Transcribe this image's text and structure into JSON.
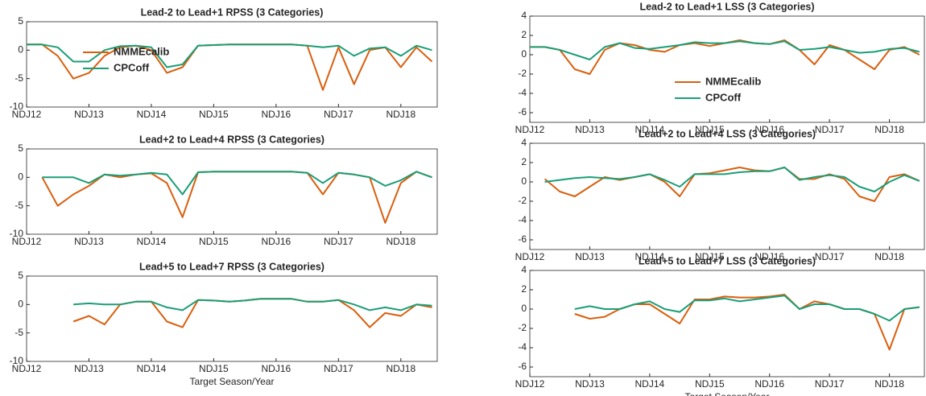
{
  "chart_data": [
    {
      "type": "line",
      "title": "Lead-2 to Lead+1 RPSS (3 Categories)",
      "x": [
        0,
        3,
        6,
        9,
        12,
        15,
        18,
        21,
        24,
        27,
        30,
        33,
        36,
        39,
        42,
        45,
        48,
        51,
        54,
        57,
        60,
        63,
        66,
        69,
        72,
        75,
        78
      ],
      "xlim": [
        0,
        79
      ],
      "xticks": [
        {
          "value": 0,
          "label": "NDJ12"
        },
        {
          "value": 12,
          "label": "NDJ13"
        },
        {
          "value": 24,
          "label": "NDJ14"
        },
        {
          "value": 36,
          "label": "NDJ15"
        },
        {
          "value": 48,
          "label": "NDJ16"
        },
        {
          "value": 60,
          "label": "NDJ17"
        },
        {
          "value": 72,
          "label": "NDJ18"
        }
      ],
      "ylim": [
        -10,
        5
      ],
      "yticks": [
        -10,
        -5,
        0,
        5
      ],
      "legend": "center left",
      "series": [
        {
          "name": "NMMEcalib",
          "color": "#d95f0e",
          "values": [
            1,
            1,
            -1,
            -5,
            -4,
            -1,
            0.5,
            0.8,
            0,
            -4,
            -3,
            0.8,
            0.9,
            1,
            1,
            1,
            1,
            1,
            0.8,
            -7,
            0.5,
            -6,
            0,
            0.5,
            -3,
            0.5,
            -2
          ]
        },
        {
          "name": "CPCoff",
          "color": "#1b9e77",
          "values": [
            1,
            1,
            0.5,
            -2,
            -2,
            0,
            0.7,
            0.8,
            0.5,
            -3,
            -2.5,
            0.8,
            0.9,
            1,
            1,
            1,
            1,
            1,
            0.8,
            0.5,
            0.8,
            -1,
            0.3,
            0.5,
            -1,
            0.8,
            0
          ]
        }
      ]
    },
    {
      "type": "line",
      "title": "Lead-2 to Lead+1 LSS (3 Categories)",
      "x": [
        0,
        3,
        6,
        9,
        12,
        15,
        18,
        21,
        24,
        27,
        30,
        33,
        36,
        39,
        42,
        45,
        48,
        51,
        54,
        57,
        60,
        63,
        66,
        69,
        72,
        75,
        78
      ],
      "xlim": [
        0,
        79
      ],
      "xticks": [
        {
          "value": 0,
          "label": "NDJ12"
        },
        {
          "value": 12,
          "label": "NDJ13"
        },
        {
          "value": 24,
          "label": "NDJ14"
        },
        {
          "value": 36,
          "label": "NDJ15"
        },
        {
          "value": 48,
          "label": "NDJ16"
        },
        {
          "value": 60,
          "label": "NDJ17"
        },
        {
          "value": 72,
          "label": "NDJ18"
        }
      ],
      "ylim": [
        -7,
        4
      ],
      "yticks": [
        -6,
        -4,
        -2,
        0,
        2,
        4
      ],
      "legend": "lower center",
      "series": [
        {
          "name": "NMMEcalib",
          "color": "#d95f0e",
          "values": [
            0.8,
            0.8,
            0.5,
            -1.5,
            -2,
            0.5,
            1.2,
            1,
            0.5,
            0.3,
            1,
            1.2,
            0.9,
            1.2,
            1.5,
            1.2,
            1.1,
            1.5,
            0.5,
            -1,
            1,
            0.5,
            -0.5,
            -1.5,
            0.5,
            0.8,
            0
          ]
        },
        {
          "name": "CPCoff",
          "color": "#1b9e77",
          "values": [
            0.8,
            0.8,
            0.5,
            0,
            -0.5,
            0.8,
            1.2,
            0.7,
            0.6,
            0.8,
            1,
            1.3,
            1.2,
            1.2,
            1.4,
            1.2,
            1.1,
            1.4,
            0.5,
            0.6,
            0.8,
            0.5,
            0.2,
            0.3,
            0.6,
            0.7,
            0.3
          ]
        }
      ]
    },
    {
      "type": "line",
      "title": "Lead+2 to Lead+4 RPSS (3 Categories)",
      "x": [
        0,
        3,
        6,
        9,
        12,
        15,
        18,
        21,
        24,
        27,
        30,
        33,
        36,
        39,
        42,
        45,
        48,
        51,
        54,
        57,
        60,
        63,
        66,
        69,
        72,
        75,
        78
      ],
      "xlim": [
        0,
        79
      ],
      "xticks": [
        {
          "value": 0,
          "label": "NDJ12"
        },
        {
          "value": 12,
          "label": "NDJ13"
        },
        {
          "value": 24,
          "label": "NDJ14"
        },
        {
          "value": 36,
          "label": "NDJ15"
        },
        {
          "value": 48,
          "label": "NDJ16"
        },
        {
          "value": 60,
          "label": "NDJ17"
        },
        {
          "value": 72,
          "label": "NDJ18"
        }
      ],
      "ylim": [
        -10,
        5
      ],
      "yticks": [
        -10,
        -5,
        0,
        5
      ],
      "series": [
        {
          "name": "NMMEcalib",
          "color": "#d95f0e",
          "values": [
            null,
            0,
            -5,
            -3,
            -1.5,
            0.5,
            0,
            0.5,
            0.7,
            -1,
            -7,
            0.9,
            1,
            1,
            1,
            1,
            1,
            1,
            0.8,
            -3,
            0.8,
            0.5,
            0,
            -8,
            -1,
            1,
            0
          ]
        },
        {
          "name": "CPCoff",
          "color": "#1b9e77",
          "values": [
            null,
            0,
            0,
            0,
            -1,
            0.5,
            0.3,
            0.5,
            0.8,
            0.5,
            -3,
            0.9,
            1,
            1,
            1,
            1,
            1,
            1,
            0.8,
            -1,
            0.8,
            0.5,
            0,
            -1.5,
            -0.5,
            1,
            0
          ]
        }
      ]
    },
    {
      "type": "line",
      "title": "Lead+2 to Lead+4 LSS (3 Categories)",
      "x": [
        0,
        3,
        6,
        9,
        12,
        15,
        18,
        21,
        24,
        27,
        30,
        33,
        36,
        39,
        42,
        45,
        48,
        51,
        54,
        57,
        60,
        63,
        66,
        69,
        72,
        75,
        78
      ],
      "xlim": [
        0,
        79
      ],
      "xticks": [
        {
          "value": 0,
          "label": "NDJ12"
        },
        {
          "value": 12,
          "label": "NDJ13"
        },
        {
          "value": 24,
          "label": "NDJ14"
        },
        {
          "value": 36,
          "label": "NDJ15"
        },
        {
          "value": 48,
          "label": "NDJ16"
        },
        {
          "value": 60,
          "label": "NDJ17"
        },
        {
          "value": 72,
          "label": "NDJ18"
        }
      ],
      "ylim": [
        -7,
        4
      ],
      "yticks": [
        -6,
        -4,
        -2,
        0,
        2,
        4
      ],
      "series": [
        {
          "name": "NMMEcalib",
          "color": "#d95f0e",
          "values": [
            null,
            0.3,
            -1,
            -1.5,
            -0.5,
            0.5,
            0.2,
            0.5,
            0.8,
            0,
            -1.5,
            0.8,
            0.9,
            1.2,
            1.5,
            1.2,
            1.1,
            1.5,
            0.3,
            0.3,
            0.8,
            0.3,
            -1.5,
            -2,
            0.5,
            0.8,
            0.1
          ]
        },
        {
          "name": "CPCoff",
          "color": "#1b9e77",
          "values": [
            null,
            0,
            0.2,
            0.4,
            0.5,
            0.4,
            0.3,
            0.5,
            0.8,
            0.2,
            -0.5,
            0.8,
            0.8,
            0.8,
            1.0,
            1.1,
            1.1,
            1.5,
            0.2,
            0.5,
            0.7,
            0.5,
            -0.5,
            -1,
            0,
            0.7,
            0.1
          ]
        }
      ]
    },
    {
      "type": "line",
      "title": "Lead+5 to Lead+7 RPSS (3 Categories)",
      "x_label": "Target Season/Year",
      "x": [
        0,
        3,
        6,
        9,
        12,
        15,
        18,
        21,
        24,
        27,
        30,
        33,
        36,
        39,
        42,
        45,
        48,
        51,
        54,
        57,
        60,
        63,
        66,
        69,
        72,
        75,
        78
      ],
      "xlim": [
        0,
        79
      ],
      "xticks": [
        {
          "value": 0,
          "label": "NDJ12"
        },
        {
          "value": 12,
          "label": "NDJ13"
        },
        {
          "value": 24,
          "label": "NDJ14"
        },
        {
          "value": 36,
          "label": "NDJ15"
        },
        {
          "value": 48,
          "label": "NDJ16"
        },
        {
          "value": 60,
          "label": "NDJ17"
        },
        {
          "value": 72,
          "label": "NDJ18"
        }
      ],
      "ylim": [
        -10,
        5
      ],
      "yticks": [
        -10,
        -5,
        0,
        5
      ],
      "series": [
        {
          "name": "NMMEcalib",
          "color": "#d95f0e",
          "values": [
            null,
            null,
            null,
            -3,
            -2,
            -3.5,
            0,
            0.5,
            0.5,
            -3,
            -4,
            0.8,
            0.7,
            0.5,
            0.7,
            1,
            1,
            1,
            0.5,
            0.5,
            0.8,
            -1,
            -4,
            -1.5,
            -2,
            0,
            -0.5
          ]
        },
        {
          "name": "CPCoff",
          "color": "#1b9e77",
          "values": [
            null,
            null,
            null,
            0,
            0.2,
            0,
            0,
            0.5,
            0.5,
            -0.5,
            -1,
            0.8,
            0.7,
            0.5,
            0.7,
            1,
            1,
            1,
            0.5,
            0.5,
            0.8,
            0,
            -1,
            -0.5,
            -1,
            0,
            -0.2
          ]
        }
      ]
    },
    {
      "type": "line",
      "title": "Lead+5 to Lead+7 LSS (3 Categories)",
      "x_label": "Target Season/Year",
      "x": [
        0,
        3,
        6,
        9,
        12,
        15,
        18,
        21,
        24,
        27,
        30,
        33,
        36,
        39,
        42,
        45,
        48,
        51,
        54,
        57,
        60,
        63,
        66,
        69,
        72,
        75,
        78
      ],
      "xlim": [
        0,
        79
      ],
      "xticks": [
        {
          "value": 0,
          "label": "NDJ12"
        },
        {
          "value": 12,
          "label": "NDJ13"
        },
        {
          "value": 24,
          "label": "NDJ14"
        },
        {
          "value": 36,
          "label": "NDJ15"
        },
        {
          "value": 48,
          "label": "NDJ16"
        },
        {
          "value": 60,
          "label": "NDJ17"
        },
        {
          "value": 72,
          "label": "NDJ18"
        }
      ],
      "ylim": [
        -7,
        4
      ],
      "yticks": [
        -6,
        -4,
        -2,
        0,
        2,
        4
      ],
      "series": [
        {
          "name": "NMMEcalib",
          "color": "#d95f0e",
          "values": [
            null,
            null,
            null,
            -0.5,
            -1,
            -0.8,
            0,
            0.5,
            0.5,
            -0.5,
            -1.5,
            1,
            1,
            1.3,
            1.2,
            1.2,
            1.3,
            1.5,
            0,
            0.8,
            0.5,
            0,
            0,
            -0.5,
            -4.2,
            0,
            0.2
          ]
        },
        {
          "name": "CPCoff",
          "color": "#1b9e77",
          "values": [
            null,
            null,
            null,
            0,
            0.3,
            0,
            0,
            0.5,
            0.8,
            0,
            -0.3,
            0.9,
            0.9,
            1.1,
            0.8,
            1,
            1.2,
            1.4,
            0,
            0.5,
            0.5,
            0,
            0,
            -0.5,
            -1.2,
            0,
            0.2
          ]
        }
      ]
    }
  ]
}
